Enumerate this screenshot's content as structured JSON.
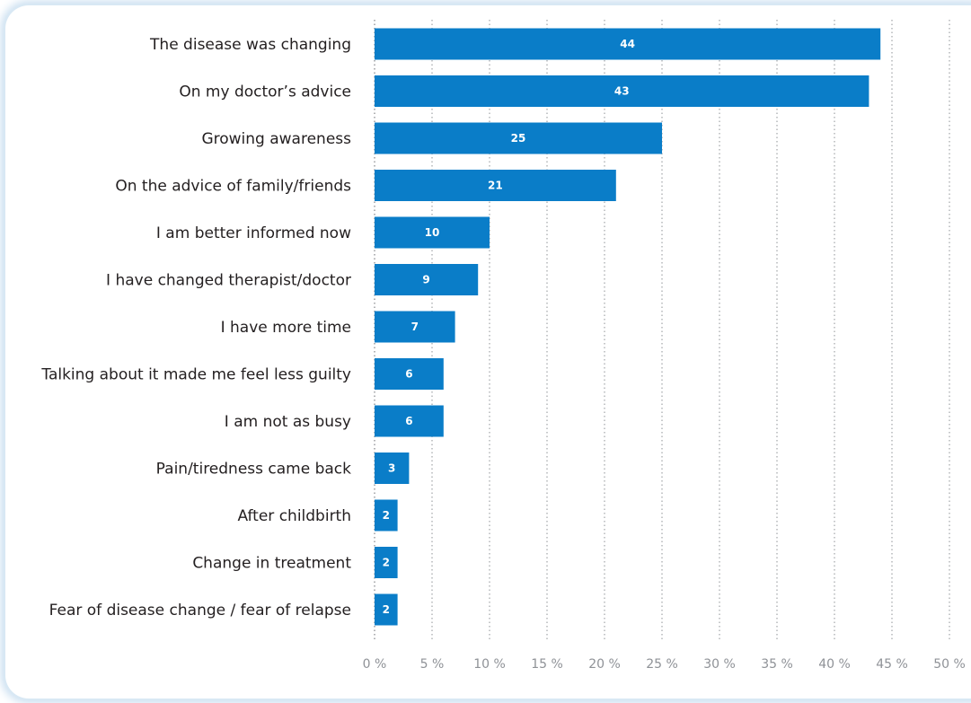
{
  "chart_data": {
    "type": "bar",
    "orientation": "horizontal",
    "categories": [
      "The disease was changing",
      "On my doctor’s advice",
      "Growing awareness",
      "On the advice of family/friends",
      "I am better informed now",
      "I have changed therapist/doctor",
      "I have more time",
      "Talking about it made me feel less guilty",
      "I am not as busy",
      "Pain/tiredness came back",
      "After childbirth",
      "Change in treatment",
      "Fear of disease change / fear of relapse"
    ],
    "values": [
      44,
      43,
      25,
      21,
      10,
      9,
      7,
      6,
      6,
      3,
      2,
      2,
      2
    ],
    "data_labels": [
      "44",
      "43",
      "25",
      "21",
      "10",
      "9",
      "7",
      "6",
      "6",
      "3",
      "2",
      "2",
      "2"
    ],
    "xlim": [
      0,
      50
    ],
    "x_ticks": [
      0,
      5,
      10,
      15,
      20,
      25,
      30,
      35,
      40,
      45,
      50
    ],
    "x_tick_labels": [
      "0 %",
      "5 %",
      "10 %",
      "15 %",
      "20 %",
      "25 %",
      "30 %",
      "35 %",
      "40 %",
      "45 %",
      "50 %"
    ],
    "grid": "vertical dotted",
    "bar_color": "#0a7dc8",
    "legend": "none"
  }
}
